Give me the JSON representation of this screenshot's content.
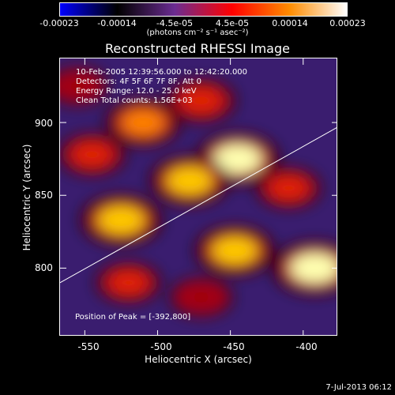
{
  "colorbar": {
    "ticks": [
      "-0.00023",
      "-0.00014",
      "-4.5e-05",
      "4.5e-05",
      "0.00014",
      "0.00023"
    ],
    "units": "(photons cm⁻² s⁻¹ asec⁻²)",
    "colors": [
      "#0000ff",
      "#000000",
      "#6b2c91",
      "#ff0000",
      "#ff8c00",
      "#ffffff"
    ]
  },
  "title": "Reconstructed RHESSI Image",
  "info": {
    "line1": "10-Feb-2005 12:39:56.000 to 12:42:20.000",
    "line2": "Detectors: 4F 5F 6F 7F 8F, Att 0",
    "line3": "Energy Range: 12.0 - 25.0 keV",
    "line4": "Clean     Total counts: 1.56E+03"
  },
  "peak": "Position of Peak = [-392,800]",
  "axes": {
    "xlabel": "Heliocentric X (arcsec)",
    "ylabel": "Heliocentric Y (arcsec)",
    "xticks": [
      "-550",
      "-500",
      "-450",
      "-400"
    ],
    "yticks": [
      "900",
      "850",
      "800"
    ]
  },
  "footer": {
    "date": "7-Jul-2013 06:12"
  },
  "chart_data": {
    "type": "heatmap",
    "title": "Reconstructed RHESSI Image",
    "xlabel": "Heliocentric X (arcsec)",
    "ylabel": "Heliocentric Y (arcsec)",
    "xlim": [
      -567,
      -376
    ],
    "ylim": [
      753,
      944
    ],
    "color_range": [
      -0.00023,
      0.00023
    ],
    "peak": [
      -392,
      800
    ],
    "limb_line": [
      [
        -567,
        790
      ],
      [
        -376,
        897
      ]
    ],
    "blobs": [
      {
        "x": -392,
        "y": 800,
        "level": 1.0
      },
      {
        "x": -445,
        "y": 875,
        "level": 0.95
      },
      {
        "x": -478,
        "y": 860,
        "level": 0.85
      },
      {
        "x": -525,
        "y": 833,
        "level": 0.9
      },
      {
        "x": -447,
        "y": 812,
        "level": 0.85
      },
      {
        "x": -510,
        "y": 900,
        "level": 0.75
      },
      {
        "x": -470,
        "y": 915,
        "level": 0.6
      },
      {
        "x": -545,
        "y": 878,
        "level": 0.55
      },
      {
        "x": -410,
        "y": 855,
        "level": 0.5
      },
      {
        "x": -520,
        "y": 790,
        "level": 0.5
      },
      {
        "x": -470,
        "y": 780,
        "level": 0.45
      },
      {
        "x": -555,
        "y": 925,
        "level": 0.4
      }
    ]
  }
}
